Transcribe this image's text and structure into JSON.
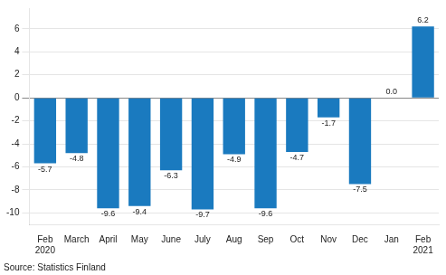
{
  "chart_data": {
    "type": "bar",
    "categories": [
      "Feb\n2020",
      "March",
      "April",
      "May",
      "June",
      "July",
      "Aug",
      "Sep",
      "Oct",
      "Nov",
      "Dec",
      "Jan",
      "Feb\n2021"
    ],
    "values": [
      -5.7,
      -4.8,
      -9.6,
      -9.4,
      -6.3,
      -9.7,
      -4.9,
      -9.6,
      -4.7,
      -1.7,
      -7.5,
      0.0,
      6.2
    ],
    "value_labels": [
      "-5.7",
      "-4.8",
      "-9.6",
      "-9.4",
      "-6.3",
      "-9.7",
      "-4.9",
      "-9.6",
      "-4.7",
      "-1.7",
      "-7.5",
      "0.0",
      "6.2"
    ],
    "data_labels": true,
    "color": "#1a7abf",
    "ylim": [
      -11,
      7.8
    ],
    "yticks": [
      -10,
      -8,
      -6,
      -4,
      -2,
      0,
      2,
      4,
      6
    ],
    "grid": true,
    "annotations": [
      "Source: Statistics Finland"
    ]
  }
}
